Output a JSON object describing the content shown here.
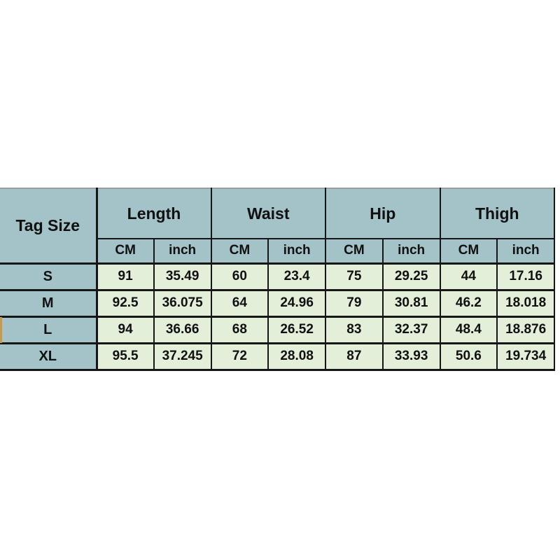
{
  "colors": {
    "header_bg": "#a4c3c9",
    "data_bg": "#e4efda",
    "border": "#161616",
    "top_edge": "#9b9b9b",
    "left_edge_artifact": "#c79a4b"
  },
  "chart_data": {
    "type": "table",
    "corner_header": "Tag Size",
    "column_groups": [
      "Length",
      "Waist",
      "Hip",
      "Thigh"
    ],
    "sub_columns": [
      "CM",
      "inch"
    ],
    "rows": [
      [
        "S",
        91,
        35.49,
        60,
        23.4,
        75,
        29.25,
        44,
        17.16
      ],
      [
        "M",
        92.5,
        36.075,
        64,
        24.96,
        79,
        30.81,
        46.2,
        18.018
      ],
      [
        "L",
        94,
        36.66,
        68,
        26.52,
        83,
        32.37,
        48.4,
        18.876
      ],
      [
        "XL",
        95.5,
        37.245,
        72,
        28.08,
        87,
        33.93,
        50.6,
        19.734
      ]
    ]
  }
}
